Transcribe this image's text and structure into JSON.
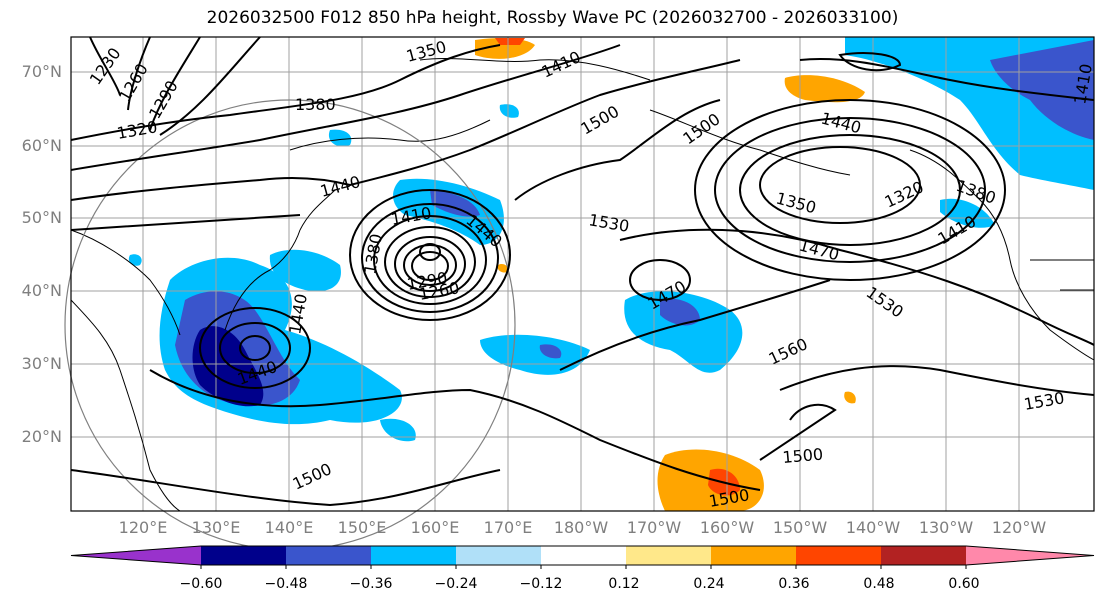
{
  "title": "2026032500 F012 850 hPa height, Rossby Wave PC (2026032700 - 2026033100)",
  "lat_labels": [
    "70°N",
    "60°N",
    "50°N",
    "40°N",
    "30°N",
    "20°N"
  ],
  "lon_labels": [
    "120°E",
    "130°E",
    "140°E",
    "150°E",
    "160°E",
    "170°E",
    "180°W",
    "170°W",
    "160°W",
    "150°W",
    "140°W",
    "130°W",
    "120°W"
  ],
  "contour_labels": [
    "1230",
    "1260",
    "1290",
    "1320",
    "1350",
    "1380",
    "1410",
    "1440",
    "1440",
    "1500",
    "1500",
    "1440",
    "1350",
    "1320",
    "1380",
    "1410",
    "1530",
    "1470",
    "1530",
    "1470",
    "1560",
    "1530",
    "1500",
    "1500",
    "1500",
    "1440",
    "1380",
    "1410",
    "1440",
    "1290",
    "1260",
    "1410"
  ],
  "colorbar": {
    "ticks": [
      "−0.60",
      "−0.48",
      "−0.36",
      "−0.24",
      "−0.12",
      "0.12",
      "0.24",
      "0.36",
      "0.48",
      "0.60"
    ],
    "colors": [
      "#9932cc",
      "#00008b",
      "#3a55cc",
      "#00bfff",
      "#b0e0f8",
      "#ffffff",
      "#ffe88a",
      "#ffa500",
      "#ff4500",
      "#b22222",
      "#ff88aa"
    ]
  },
  "colors": {
    "grid": "#a0a0a0",
    "contour": "#000000",
    "coast": "#000000"
  }
}
